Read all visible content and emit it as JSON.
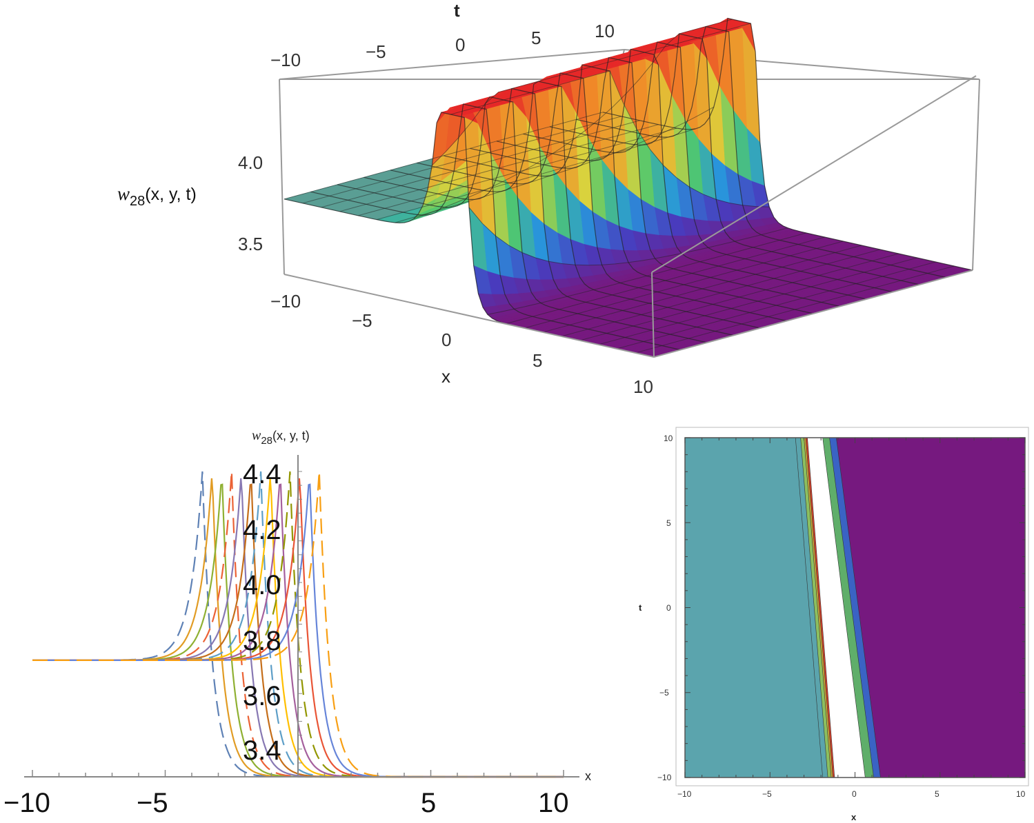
{
  "chart_data": [
    {
      "type": "surface3d",
      "zlabel": "w",
      "zlabel_sub": "28",
      "zlabel_args": "(x, y, t)",
      "xlabel": "x",
      "tlabel": "t",
      "x_ticks": [
        "−10",
        "−5",
        "0",
        "5",
        "10"
      ],
      "t_ticks": [
        "−10",
        "−5",
        "0",
        "5",
        "10"
      ],
      "z_ticks": [
        "4.0",
        "3.5"
      ],
      "xlim": [
        -10,
        10
      ],
      "tlim": [
        -10,
        10
      ],
      "low_level_left": 3.72,
      "peak_level": 4.4,
      "low_level_right": 3.3,
      "kink_x_at_t0": -1
    },
    {
      "type": "line",
      "ylabel": "w",
      "ylabel_sub": "28",
      "ylabel_args": "(x, y, t)",
      "xlabel": "x",
      "x_ticks": [
        "−10",
        "−5",
        "5",
        "10"
      ],
      "y_ticks": [
        "4.4",
        "4.2",
        "4.0",
        "3.8",
        "3.6",
        "3.4"
      ],
      "xlim": [
        -10,
        10
      ],
      "ylim": [
        3.3,
        4.4
      ],
      "left_level": 3.72,
      "peak_level": 4.4,
      "right_level": 3.3,
      "curve_count": 13,
      "kink_x_range": [
        -3.6,
        0.8
      ],
      "series_colors": [
        "#5e81b5",
        "#e19c24",
        "#8fb032",
        "#eb6235",
        "#8778b3",
        "#c56e1a",
        "#5d9ec7",
        "#ffbf00",
        "#a5609d",
        "#929600",
        "#e95536",
        "#6685d9",
        "#f89f13"
      ]
    },
    {
      "type": "contour",
      "xlabel": "x",
      "ylabel": "t",
      "x_ticks": [
        "−10",
        "−5",
        "0",
        "5",
        "10"
      ],
      "y_ticks": [
        "10",
        "5",
        "0",
        "−5",
        "−10"
      ],
      "xlim": [
        -10,
        10
      ],
      "ylim": [
        -10,
        10
      ],
      "bands": [
        {
          "color": "#5ba4ad",
          "x_top": -3.5,
          "x_bottom": -1.9
        },
        {
          "color": "#8cbf5f",
          "x_top": -3.2,
          "x_bottom": -1.6
        },
        {
          "color": "#c8a838",
          "x_top": -3.0,
          "x_bottom": -1.4
        },
        {
          "color": "#d0402a",
          "x_top": -2.9,
          "x_bottom": -1.3
        },
        {
          "color": "#ffffff",
          "x_top": -2.8,
          "x_bottom": -1.2
        },
        {
          "color": "#5fae6a",
          "x_top": -1.9,
          "x_bottom": 0.6
        },
        {
          "color": "#3a63c4",
          "x_top": -1.5,
          "x_bottom": 1.1
        },
        {
          "color": "#76197f",
          "x_top": -1.1,
          "x_bottom": 1.5
        }
      ],
      "colors": {
        "left": "#5ba4ad",
        "right": "#76197f"
      }
    }
  ]
}
